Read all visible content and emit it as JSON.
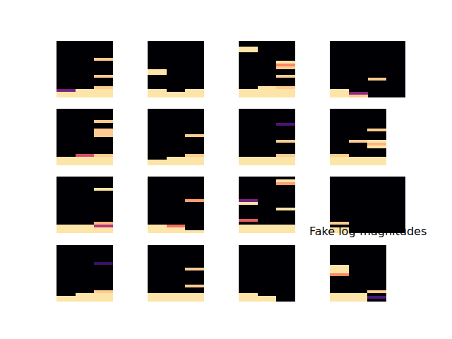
{
  "chart_data": {
    "type": "heatmap",
    "tick_labels": false,
    "zlim": [
      0,
      1
    ],
    "panels": [
      {
        "columns": [
          [
            0.95,
            0.95,
            0.35,
            0,
            0,
            0,
            0,
            0,
            0,
            0,
            0,
            0,
            0,
            0,
            0,
            0,
            0,
            0,
            0,
            0
          ],
          [
            0.95,
            0.95,
            0.95,
            0,
            0,
            0,
            0,
            0,
            0,
            0,
            0,
            0,
            0,
            0,
            0,
            0,
            0,
            0,
            0,
            0
          ],
          [
            0.95,
            0.95,
            0.95,
            0.9,
            0,
            0,
            0,
            0.9,
            0,
            0,
            0,
            0,
            0,
            0.9,
            0,
            0,
            0,
            0,
            0,
            0
          ]
        ]
      },
      {
        "columns": [
          [
            0.95,
            0.95,
            0.95,
            0,
            0,
            0,
            0,
            0,
            0.95,
            0.95,
            0,
            0,
            0,
            0,
            0,
            0,
            0,
            0,
            0,
            0
          ],
          [
            0.95,
            0.95,
            0,
            0,
            0,
            0,
            0,
            0,
            0,
            0,
            0,
            0,
            0,
            0,
            0,
            0,
            0,
            0,
            0,
            0
          ],
          [
            0.95,
            0.95,
            0.95,
            0,
            0,
            0,
            0,
            0,
            0,
            0,
            0,
            0,
            0,
            0,
            0,
            0,
            0,
            0,
            0,
            0
          ]
        ]
      },
      {
        "columns": [
          [
            0.95,
            0.95,
            0.95,
            0,
            0,
            0,
            0,
            0,
            0,
            0,
            0,
            0,
            0,
            0,
            0,
            0,
            0.95,
            0.95,
            0,
            0
          ],
          [
            0.95,
            0.95,
            0.95,
            0.95,
            0,
            0,
            0,
            0,
            0,
            0,
            0,
            0,
            0,
            0,
            0,
            0,
            0,
            0,
            0,
            0
          ],
          [
            0.95,
            0.95,
            0.95,
            0.9,
            0,
            0,
            0,
            0.9,
            0,
            0,
            0.9,
            0.75,
            0.95,
            0,
            0,
            0,
            0,
            0,
            0,
            0
          ]
        ]
      },
      {
        "columns": [
          [
            0.95,
            0.95,
            0.95,
            0,
            0,
            0,
            0,
            0,
            0,
            0,
            0,
            0,
            0,
            0,
            0,
            0,
            0,
            0,
            0,
            0
          ],
          [
            0.9,
            0.4,
            0,
            0,
            0,
            0,
            0,
            0,
            0,
            0,
            0,
            0,
            0,
            0,
            0,
            0,
            0,
            0,
            0,
            0
          ],
          [
            0,
            0,
            0,
            0,
            0,
            0,
            0.9,
            0,
            0,
            0,
            0,
            0,
            0,
            0,
            0,
            0,
            0,
            0,
            0,
            0
          ],
          [
            0,
            0,
            0,
            0,
            0,
            0,
            0,
            0,
            0,
            0,
            0,
            0,
            0,
            0,
            0,
            0,
            0,
            0,
            0,
            0
          ]
        ]
      },
      {
        "columns": [
          [
            0.95,
            0.95,
            0.95,
            0,
            0,
            0,
            0,
            0,
            0,
            0,
            0,
            0,
            0,
            0,
            0,
            0,
            0,
            0,
            0,
            0
          ],
          [
            0.95,
            0.95,
            0.95,
            0.6,
            0,
            0,
            0,
            0,
            0,
            0,
            0,
            0,
            0,
            0,
            0,
            0,
            0,
            0,
            0,
            0
          ],
          [
            0.95,
            0.95,
            0.95,
            0.9,
            0,
            0,
            0,
            0,
            0,
            0,
            0.9,
            0.9,
            0.9,
            0,
            0,
            0.9,
            0,
            0,
            0,
            0
          ]
        ]
      },
      {
        "columns": [
          [
            0.95,
            0.95,
            0,
            0,
            0,
            0,
            0,
            0,
            0,
            0,
            0,
            0,
            0,
            0,
            0,
            0,
            0,
            0,
            0,
            0
          ],
          [
            0.95,
            0.95,
            0.95,
            0,
            0,
            0,
            0,
            0,
            0,
            0,
            0,
            0,
            0,
            0,
            0,
            0,
            0,
            0,
            0,
            0
          ],
          [
            0.95,
            0.95,
            0.95,
            0.9,
            0,
            0,
            0,
            0,
            0,
            0,
            0.9,
            0,
            0,
            0,
            0,
            0,
            0,
            0,
            0,
            0
          ]
        ]
      },
      {
        "columns": [
          [
            0.95,
            0.95,
            0.95,
            0,
            0,
            0,
            0,
            0,
            0,
            0,
            0,
            0,
            0,
            0,
            0,
            0,
            0,
            0,
            0,
            0
          ],
          [
            0.95,
            0.95,
            0.95,
            0,
            0,
            0,
            0,
            0,
            0,
            0,
            0,
            0,
            0,
            0,
            0,
            0,
            0,
            0,
            0,
            0
          ],
          [
            0.95,
            0.95,
            0.95,
            0.9,
            0,
            0,
            0,
            0,
            0.9,
            0,
            0,
            0,
            0,
            0,
            0.25,
            0,
            0,
            0,
            0,
            0
          ]
        ]
      },
      {
        "columns": [
          [
            0.95,
            0.95,
            0.95,
            0.9,
            0,
            0,
            0,
            0,
            0,
            0,
            0,
            0,
            0,
            0,
            0,
            0,
            0,
            0,
            0,
            0
          ],
          [
            0.95,
            0.95,
            0.95,
            0,
            0,
            0,
            0,
            0,
            0.9,
            0,
            0,
            0,
            0,
            0,
            0,
            0,
            0,
            0,
            0,
            0
          ],
          [
            0.95,
            0.95,
            0.95,
            0,
            0,
            0,
            0.95,
            0.85,
            0.95,
            0,
            0,
            0,
            0.9,
            0,
            0,
            0,
            0,
            0,
            0,
            0
          ]
        ]
      },
      {
        "columns": [
          [
            0.95,
            0.95,
            0.95,
            0,
            0,
            0,
            0,
            0,
            0,
            0,
            0,
            0,
            0,
            0,
            0,
            0,
            0,
            0,
            0,
            0
          ],
          [
            0.95,
            0.95,
            0.95,
            0,
            0,
            0,
            0,
            0,
            0,
            0,
            0,
            0,
            0,
            0,
            0,
            0,
            0,
            0,
            0,
            0
          ],
          [
            0.95,
            0.95,
            0.5,
            0.85,
            0,
            0,
            0,
            0,
            0,
            0,
            0,
            0,
            0,
            0,
            0,
            0.95,
            0,
            0,
            0,
            0
          ]
        ]
      },
      {
        "columns": [
          [
            0.95,
            0.95,
            0.95,
            0,
            0,
            0,
            0,
            0,
            0,
            0,
            0,
            0,
            0,
            0,
            0,
            0,
            0,
            0,
            0,
            0
          ],
          [
            0.95,
            0.95,
            0.7,
            0,
            0,
            0,
            0,
            0,
            0,
            0,
            0,
            0,
            0,
            0,
            0,
            0,
            0,
            0,
            0,
            0
          ],
          [
            0.95,
            0,
            0,
            0,
            0,
            0,
            0,
            0,
            0,
            0,
            0,
            0.8,
            0,
            0,
            0,
            0,
            0,
            0,
            0,
            0
          ]
        ]
      },
      {
        "columns": [
          [
            0.95,
            0.95,
            0.95,
            0,
            0.65,
            0,
            0,
            0,
            0,
            0,
            0.95,
            0.35,
            0,
            0,
            0,
            0,
            0,
            0,
            0,
            0
          ],
          [
            0.95,
            0.95,
            0.95,
            0,
            0,
            0,
            0,
            0,
            0,
            0,
            0,
            0,
            0,
            0,
            0,
            0,
            0,
            0,
            0,
            0
          ],
          [
            0.95,
            0.95,
            0.95,
            0,
            0,
            0,
            0,
            0,
            0.95,
            0,
            0,
            0,
            0,
            0,
            0,
            0,
            0,
            0.8,
            0.95,
            0
          ]
        ]
      },
      {
        "columns": [
          [
            0.95,
            0.95,
            0,
            0.9,
            0,
            0,
            0,
            0,
            0,
            0,
            0,
            0,
            0,
            0,
            0,
            0,
            0,
            0,
            0,
            0
          ],
          [
            0,
            0,
            0,
            0,
            0,
            0,
            0,
            0,
            0,
            0,
            0,
            0,
            0,
            0,
            0,
            0,
            0,
            0,
            0,
            0
          ],
          [
            0,
            0,
            0,
            0,
            0,
            0,
            0,
            0,
            0,
            0,
            0,
            0,
            0,
            0,
            0,
            0,
            0,
            0,
            0,
            0
          ],
          [
            0,
            0,
            0,
            0,
            0,
            0,
            0,
            0,
            0,
            0,
            0,
            0,
            0,
            0,
            0,
            0,
            0,
            0,
            0,
            0
          ]
        ]
      },
      {
        "columns": [
          [
            0.95,
            0.95,
            0,
            0,
            0,
            0,
            0,
            0,
            0,
            0,
            0,
            0,
            0,
            0,
            0,
            0,
            0,
            0,
            0,
            0
          ],
          [
            0.95,
            0.95,
            0.95,
            0,
            0,
            0,
            0,
            0,
            0,
            0,
            0,
            0,
            0,
            0,
            0,
            0,
            0,
            0,
            0,
            0
          ],
          [
            0.95,
            0.95,
            0.95,
            0.9,
            0,
            0,
            0,
            0,
            0,
            0,
            0,
            0,
            0,
            0.2,
            0,
            0,
            0,
            0,
            0,
            0
          ]
        ]
      },
      {
        "columns": [
          [
            0.95,
            0.95,
            0.95,
            0,
            0,
            0,
            0,
            0,
            0,
            0,
            0,
            0,
            0,
            0,
            0,
            0,
            0,
            0,
            0,
            0
          ],
          [
            0.95,
            0.95,
            0.95,
            0,
            0,
            0,
            0,
            0,
            0,
            0,
            0,
            0,
            0,
            0,
            0,
            0,
            0,
            0,
            0,
            0
          ],
          [
            0.95,
            0.95,
            0.95,
            0,
            0,
            0.9,
            0,
            0,
            0,
            0,
            0,
            0.9,
            0,
            0,
            0,
            0,
            0,
            0,
            0,
            0
          ]
        ]
      },
      {
        "columns": [
          [
            0.95,
            0.95,
            0.95,
            0,
            0,
            0,
            0,
            0,
            0,
            0,
            0,
            0,
            0,
            0,
            0,
            0,
            0,
            0,
            0,
            0
          ],
          [
            0.95,
            0.95,
            0,
            0,
            0,
            0,
            0,
            0,
            0,
            0,
            0,
            0,
            0,
            0,
            0,
            0,
            0,
            0,
            0,
            0
          ],
          [
            0,
            0,
            0,
            0,
            0,
            0,
            0,
            0,
            0,
            0,
            0,
            0,
            0,
            0,
            0,
            0,
            0,
            0,
            0,
            0
          ]
        ]
      },
      {
        "title": "Fake log-magnitudes",
        "columns": [
          [
            0.95,
            0.95,
            0.95,
            0,
            0,
            0,
            0,
            0,
            0,
            0.75,
            0.95,
            0.95,
            0.95,
            0,
            0,
            0,
            0,
            0,
            0,
            0
          ],
          [
            0.95,
            0.95,
            0.95,
            0,
            0,
            0,
            0,
            0,
            0,
            0,
            0,
            0,
            0,
            0,
            0,
            0,
            0,
            0,
            0,
            0
          ],
          [
            0,
            0.25,
            0,
            0.9,
            0,
            0,
            0,
            0,
            0,
            0,
            0,
            0,
            0,
            0,
            0,
            0,
            0,
            0,
            0,
            0
          ]
        ]
      }
    ]
  }
}
